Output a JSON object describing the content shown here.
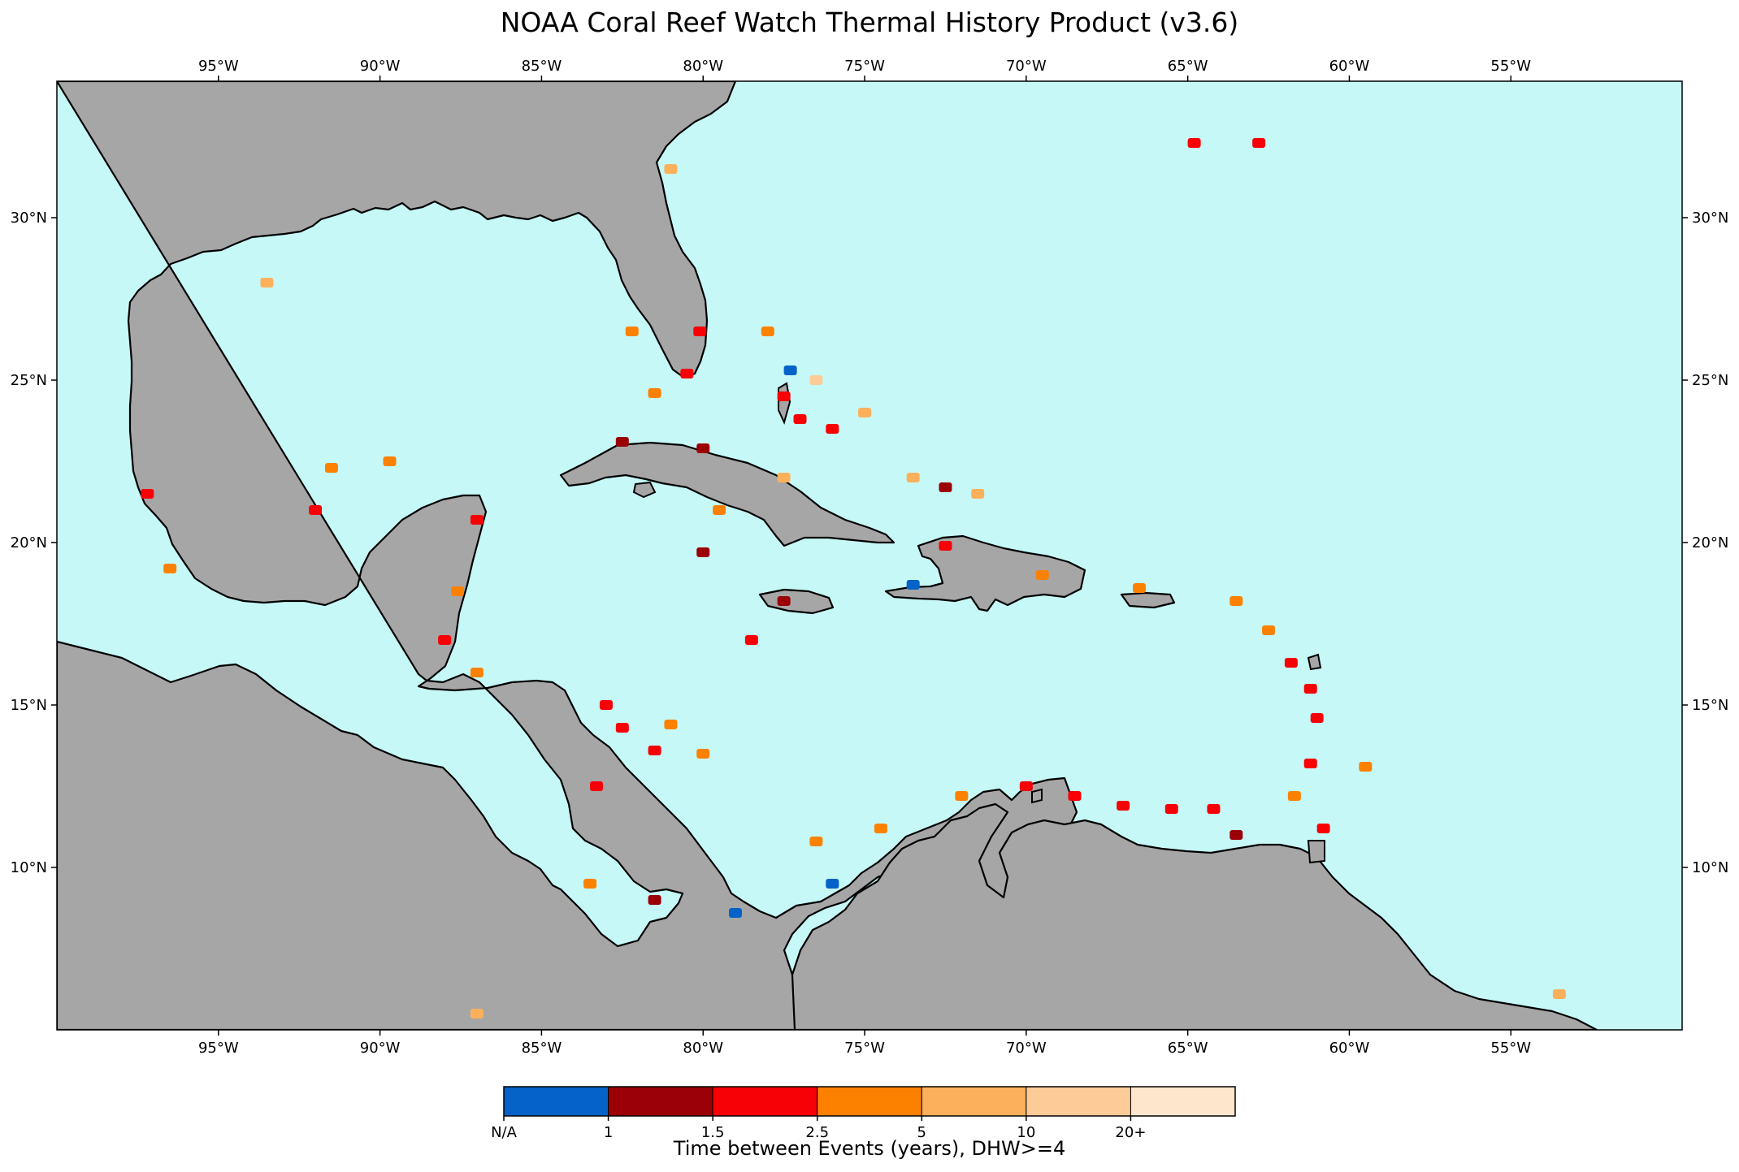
{
  "title": "NOAA Coral Reef Watch Thermal History Product (v3.6)",
  "map": {
    "extent": {
      "lon_min": -100,
      "lon_max": -49.7,
      "lat_min": 5,
      "lat_max": 34.2
    },
    "ocean_color": "#c6f8f7",
    "land_color": "#a6a6a6",
    "lon_ticks": [
      {
        "value": -95,
        "label": "95°W"
      },
      {
        "value": -90,
        "label": "90°W"
      },
      {
        "value": -85,
        "label": "85°W"
      },
      {
        "value": -80,
        "label": "80°W"
      },
      {
        "value": -75,
        "label": "75°W"
      },
      {
        "value": -70,
        "label": "70°W"
      },
      {
        "value": -65,
        "label": "65°W"
      },
      {
        "value": -60,
        "label": "60°W"
      },
      {
        "value": -55,
        "label": "55°W"
      }
    ],
    "lat_ticks": [
      {
        "value": 30,
        "label": "30°N"
      },
      {
        "value": 25,
        "label": "25°N"
      },
      {
        "value": 20,
        "label": "20°N"
      },
      {
        "value": 15,
        "label": "15°N"
      },
      {
        "value": 10,
        "label": "10°N"
      }
    ]
  },
  "colorbar": {
    "title": "Time between Events (years), DHW>=4",
    "bins": [
      {
        "color": "#0562c8"
      },
      {
        "color": "#9b0006"
      },
      {
        "color": "#f70106"
      },
      {
        "color": "#fd8100"
      },
      {
        "color": "#fdb05b"
      },
      {
        "color": "#fdcb98"
      },
      {
        "color": "#fee6cd"
      }
    ],
    "tick_labels": [
      "N/A",
      "1",
      "1.5",
      "2.5",
      "5",
      "10",
      "20+"
    ]
  },
  "reef_marks": [
    {
      "lon": -80.5,
      "lat": 25.2,
      "class": 2
    },
    {
      "lon": -81.5,
      "lat": 24.6,
      "class": 3
    },
    {
      "lon": -80.1,
      "lat": 26.5,
      "class": 2
    },
    {
      "lon": -77.5,
      "lat": 24.5,
      "class": 2
    },
    {
      "lon": -77.0,
      "lat": 23.8,
      "class": 2
    },
    {
      "lon": -76.0,
      "lat": 23.5,
      "class": 2
    },
    {
      "lon": -78.0,
      "lat": 26.5,
      "class": 3
    },
    {
      "lon": -77.3,
      "lat": 25.3,
      "class": 0
    },
    {
      "lon": -76.5,
      "lat": 25.0,
      "class": 5
    },
    {
      "lon": -75.0,
      "lat": 24.0,
      "class": 4
    },
    {
      "lon": -73.5,
      "lat": 22.0,
      "class": 4
    },
    {
      "lon": -72.5,
      "lat": 21.7,
      "class": 1
    },
    {
      "lon": -71.5,
      "lat": 21.5,
      "class": 4
    },
    {
      "lon": -82.5,
      "lat": 23.1,
      "class": 1
    },
    {
      "lon": -80.0,
      "lat": 22.9,
      "class": 1
    },
    {
      "lon": -77.5,
      "lat": 22.0,
      "class": 4
    },
    {
      "lon": -79.5,
      "lat": 21.0,
      "class": 3
    },
    {
      "lon": -80.0,
      "lat": 19.7,
      "class": 1
    },
    {
      "lon": -77.5,
      "lat": 18.2,
      "class": 1
    },
    {
      "lon": -78.5,
      "lat": 17.0,
      "class": 2
    },
    {
      "lon": -72.5,
      "lat": 19.9,
      "class": 2
    },
    {
      "lon": -73.5,
      "lat": 18.7,
      "class": 0
    },
    {
      "lon": -69.5,
      "lat": 19.0,
      "class": 3
    },
    {
      "lon": -66.5,
      "lat": 18.6,
      "class": 3
    },
    {
      "lon": -64.8,
      "lat": 32.3,
      "class": 2
    },
    {
      "lon": -62.8,
      "lat": 32.3,
      "class": 2
    },
    {
      "lon": -87.0,
      "lat": 20.7,
      "class": 2
    },
    {
      "lon": -87.6,
      "lat": 18.5,
      "class": 3
    },
    {
      "lon": -88.0,
      "lat": 17.0,
      "class": 2
    },
    {
      "lon": -87.0,
      "lat": 16.0,
      "class": 3
    },
    {
      "lon": -83.0,
      "lat": 15.0,
      "class": 2
    },
    {
      "lon": -82.5,
      "lat": 14.3,
      "class": 2
    },
    {
      "lon": -81.5,
      "lat": 13.6,
      "class": 2
    },
    {
      "lon": -83.3,
      "lat": 12.5,
      "class": 2
    },
    {
      "lon": -81.0,
      "lat": 14.4,
      "class": 3
    },
    {
      "lon": -80.0,
      "lat": 13.5,
      "class": 3
    },
    {
      "lon": -79.0,
      "lat": 8.6,
      "class": 0
    },
    {
      "lon": -81.5,
      "lat": 9.0,
      "class": 1
    },
    {
      "lon": -83.5,
      "lat": 9.5,
      "class": 3
    },
    {
      "lon": -76.0,
      "lat": 9.5,
      "class": 0
    },
    {
      "lon": -76.5,
      "lat": 10.8,
      "class": 3
    },
    {
      "lon": -74.5,
      "lat": 11.2,
      "class": 3
    },
    {
      "lon": -72.0,
      "lat": 12.2,
      "class": 3
    },
    {
      "lon": -70.0,
      "lat": 12.5,
      "class": 2
    },
    {
      "lon": -68.5,
      "lat": 12.2,
      "class": 2
    },
    {
      "lon": -67.0,
      "lat": 11.9,
      "class": 2
    },
    {
      "lon": -65.5,
      "lat": 11.8,
      "class": 2
    },
    {
      "lon": -64.2,
      "lat": 11.8,
      "class": 2
    },
    {
      "lon": -63.5,
      "lat": 11.0,
      "class": 1
    },
    {
      "lon": -61.7,
      "lat": 12.2,
      "class": 3
    },
    {
      "lon": -61.2,
      "lat": 13.2,
      "class": 2
    },
    {
      "lon": -61.0,
      "lat": 14.6,
      "class": 2
    },
    {
      "lon": -61.2,
      "lat": 15.5,
      "class": 2
    },
    {
      "lon": -61.8,
      "lat": 16.3,
      "class": 2
    },
    {
      "lon": -62.5,
      "lat": 17.3,
      "class": 3
    },
    {
      "lon": -63.5,
      "lat": 18.2,
      "class": 3
    },
    {
      "lon": -59.5,
      "lat": 13.1,
      "class": 3
    },
    {
      "lon": -60.8,
      "lat": 11.2,
      "class": 2
    },
    {
      "lon": -91.5,
      "lat": 22.3,
      "class": 3
    },
    {
      "lon": -92.0,
      "lat": 21.0,
      "class": 2
    },
    {
      "lon": -89.7,
      "lat": 22.5,
      "class": 3
    },
    {
      "lon": -96.5,
      "lat": 19.2,
      "class": 3
    },
    {
      "lon": -97.2,
      "lat": 21.5,
      "class": 2
    },
    {
      "lon": -93.5,
      "lat": 28.0,
      "class": 4
    },
    {
      "lon": -87.0,
      "lat": 5.5,
      "class": 4
    },
    {
      "lon": -53.5,
      "lat": 6.1,
      "class": 4
    },
    {
      "lon": -82.2,
      "lat": 26.5,
      "class": 3
    },
    {
      "lon": -81.0,
      "lat": 31.5,
      "class": 4
    }
  ]
}
